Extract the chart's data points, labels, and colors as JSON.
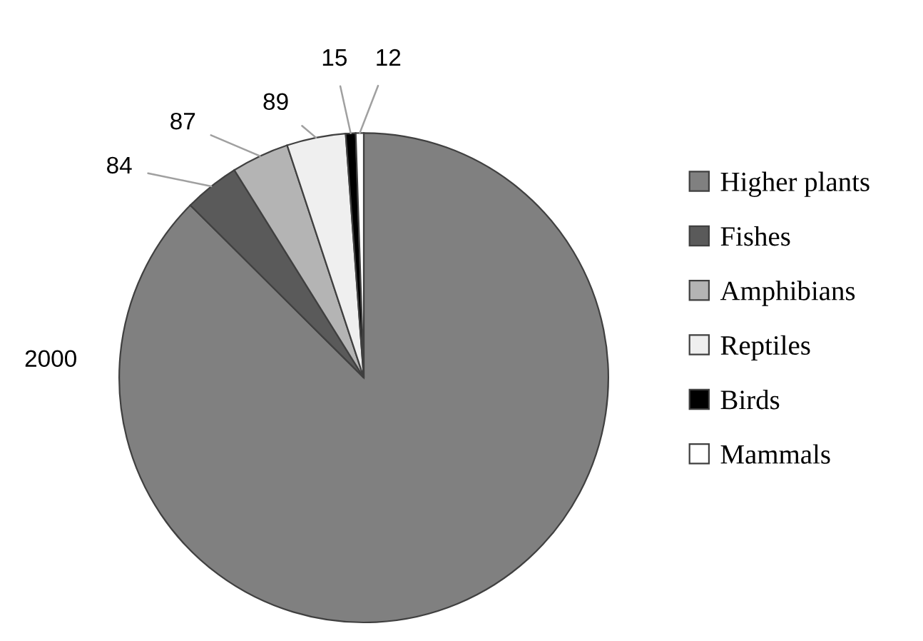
{
  "chart_data": {
    "type": "pie",
    "categories": [
      "Higher plants",
      "Fishes",
      "Amphibians",
      "Reptiles",
      "Birds",
      "Mammals"
    ],
    "values": [
      2000,
      84,
      87,
      89,
      15,
      12
    ],
    "colors": [
      "#808080",
      "#5a5a5a",
      "#b4b4b4",
      "#efefef",
      "#000000",
      "#ffffff"
    ],
    "data_labels": true,
    "legend": "right"
  }
}
